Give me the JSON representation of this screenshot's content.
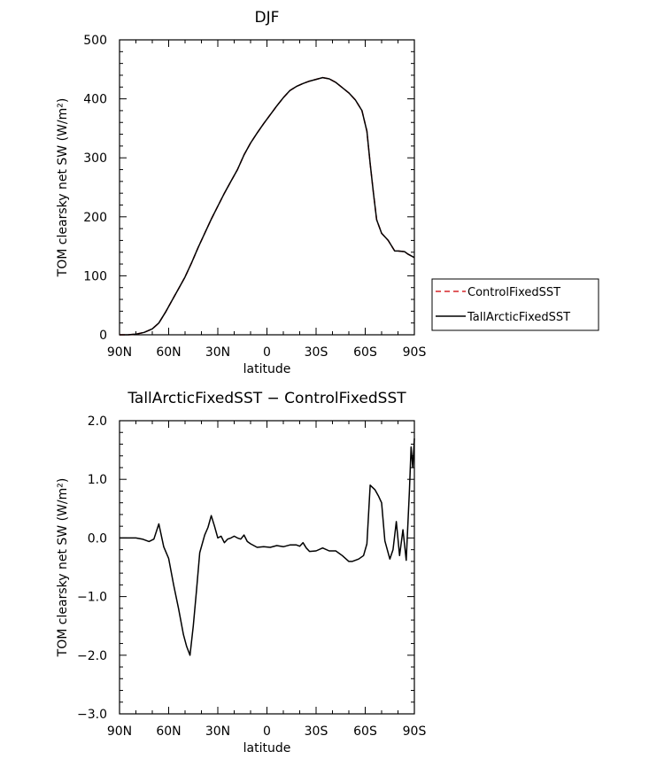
{
  "chart_data": [
    {
      "type": "line",
      "title": "DJF",
      "xlabel": "latitude",
      "ylabel": "TOM clearsky net SW (W/m²)",
      "xlim": [
        90,
        -90
      ],
      "ylim": [
        0,
        500
      ],
      "x_ticks": [
        {
          "value": 90,
          "label": "90N"
        },
        {
          "value": 60,
          "label": "60N"
        },
        {
          "value": 30,
          "label": "30N"
        },
        {
          "value": 0,
          "label": "0"
        },
        {
          "value": -30,
          "label": "30S"
        },
        {
          "value": -60,
          "label": "60S"
        },
        {
          "value": -90,
          "label": "90S"
        }
      ],
      "y_ticks": [
        {
          "value": 0,
          "label": "0"
        },
        {
          "value": 100,
          "label": "100"
        },
        {
          "value": 200,
          "label": "200"
        },
        {
          "value": 300,
          "label": "300"
        },
        {
          "value": 400,
          "label": "400"
        },
        {
          "value": 500,
          "label": "500"
        }
      ],
      "legend": {
        "placement": "right",
        "entries": [
          {
            "label": "ControlFixedSST",
            "color": "#d62728",
            "dash": "dashed"
          },
          {
            "label": "TallArcticFixedSST",
            "color": "#000000",
            "dash": "solid"
          }
        ]
      },
      "x": [
        90,
        85,
        80,
        75,
        70,
        66,
        62,
        58,
        54,
        50,
        46,
        42,
        38,
        34,
        30,
        26,
        22,
        18,
        14,
        10,
        6,
        2,
        -2,
        -6,
        -10,
        -14,
        -18,
        -22,
        -26,
        -30,
        -34,
        -38,
        -42,
        -46,
        -50,
        -54,
        -58,
        -61,
        -63,
        -65,
        -67,
        -70,
        -74,
        -78,
        -80,
        -84,
        -86,
        -90
      ],
      "series": [
        {
          "name": "ControlFixedSST",
          "color": "#d62728",
          "dash": "dashed",
          "values": [
            0,
            0,
            1,
            4,
            10,
            20,
            38,
            58,
            78,
            98,
            122,
            148,
            172,
            196,
            218,
            240,
            260,
            280,
            305,
            325,
            342,
            358,
            373,
            388,
            402,
            414,
            421,
            426,
            430,
            433,
            436,
            434,
            428,
            419,
            410,
            398,
            380,
            345,
            290,
            240,
            195,
            172,
            160,
            142,
            142,
            141,
            137,
            131
          ]
        },
        {
          "name": "TallArcticFixedSST",
          "color": "#000000",
          "dash": "solid",
          "values": [
            0,
            0,
            1,
            4,
            10,
            20,
            38,
            58,
            78,
            98,
            122,
            148,
            172,
            196,
            218,
            240,
            260,
            280,
            305,
            325,
            342,
            358,
            373,
            388,
            402,
            414,
            421,
            426,
            430,
            433,
            436,
            434,
            428,
            419,
            410,
            398,
            380,
            345,
            290,
            240,
            195,
            172,
            160,
            142,
            142,
            141,
            137,
            131
          ]
        }
      ]
    },
    {
      "type": "line",
      "title": "TallArcticFixedSST − ControlFixedSST",
      "xlabel": "latitude",
      "ylabel": "TOM clearsky net SW (W/m²)",
      "xlim": [
        90,
        -90
      ],
      "ylim": [
        -3.0,
        2.0
      ],
      "x_ticks": [
        {
          "value": 90,
          "label": "90N"
        },
        {
          "value": 60,
          "label": "60N"
        },
        {
          "value": 30,
          "label": "30N"
        },
        {
          "value": 0,
          "label": "0"
        },
        {
          "value": -30,
          "label": "30S"
        },
        {
          "value": -60,
          "label": "60S"
        },
        {
          "value": -90,
          "label": "90S"
        }
      ],
      "y_ticks": [
        {
          "value": -3.0,
          "label": "−3.0"
        },
        {
          "value": -2.0,
          "label": "−2.0"
        },
        {
          "value": -1.0,
          "label": "−1.0"
        },
        {
          "value": 0.0,
          "label": "0.0"
        },
        {
          "value": 1.0,
          "label": "1.0"
        },
        {
          "value": 2.0,
          "label": "2.0"
        }
      ],
      "series": [
        {
          "color": "#000000",
          "dash": "solid",
          "x": [
            90,
            84,
            80,
            76,
            72,
            69,
            66,
            63,
            60,
            57,
            54,
            51,
            49,
            47,
            45,
            43,
            41,
            38,
            36,
            34,
            32,
            30,
            28,
            26,
            24,
            22,
            20,
            18,
            16,
            14,
            12,
            10,
            6,
            2,
            -2,
            -6,
            -10,
            -14,
            -18,
            -20,
            -22,
            -24,
            -26,
            -30,
            -34,
            -38,
            -42,
            -46,
            -50,
            -52,
            -56,
            -59,
            -61,
            -63,
            -66,
            -68,
            -70,
            -72,
            -75,
            -77,
            -79,
            -81,
            -83,
            -85,
            -87,
            -88,
            -89,
            -90
          ],
          "values": [
            0.0,
            0.0,
            0.0,
            -0.02,
            -0.06,
            -0.02,
            0.24,
            -0.15,
            -0.35,
            -0.8,
            -1.2,
            -1.65,
            -1.85,
            -2.0,
            -1.5,
            -0.9,
            -0.25,
            0.05,
            0.18,
            0.38,
            0.2,
            0.0,
            0.03,
            -0.08,
            -0.02,
            0.0,
            0.03,
            0.0,
            -0.02,
            0.05,
            -0.06,
            -0.1,
            -0.16,
            -0.15,
            -0.16,
            -0.13,
            -0.15,
            -0.12,
            -0.12,
            -0.14,
            -0.08,
            -0.17,
            -0.23,
            -0.22,
            -0.17,
            -0.22,
            -0.22,
            -0.3,
            -0.4,
            -0.4,
            -0.36,
            -0.3,
            -0.1,
            0.9,
            0.82,
            0.72,
            0.6,
            -0.05,
            -0.36,
            -0.2,
            0.28,
            -0.3,
            0.14,
            -0.38,
            0.8,
            1.55,
            1.2,
            1.7
          ]
        }
      ]
    }
  ]
}
